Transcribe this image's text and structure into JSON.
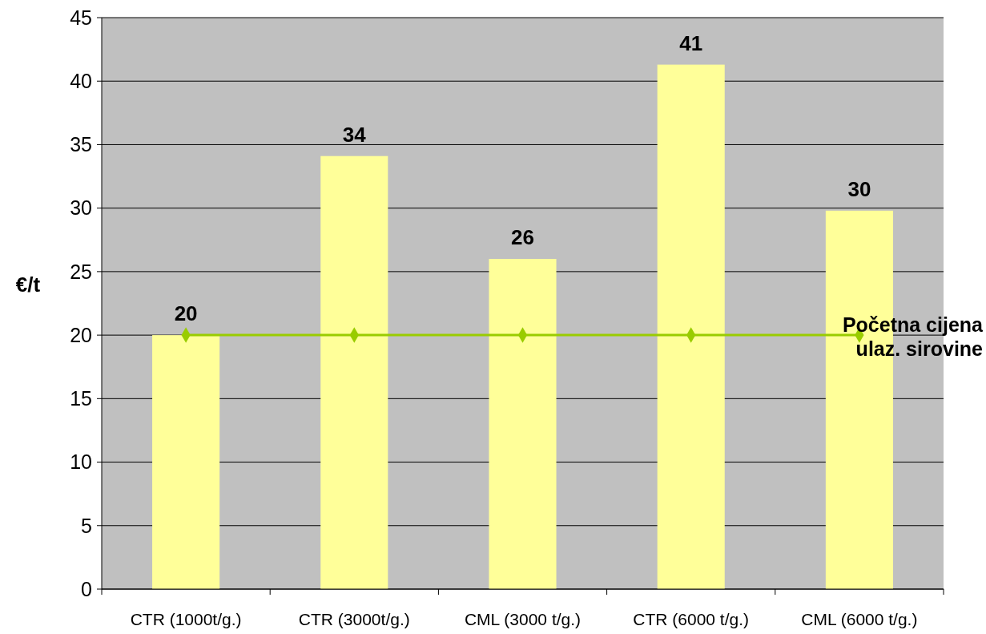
{
  "chart_data": {
    "type": "bar",
    "ylabel": "€/t",
    "categories": [
      "CTR (1000t/g.)",
      "CTR (3000t/g.)",
      "CML (3000 t/g.)",
      "CTR (6000 t/g.)",
      "CML (6000 t/g.)"
    ],
    "series": [
      {
        "color": "#ffff99",
        "values": [
          20,
          34.1,
          26,
          41.3,
          29.8
        ],
        "value_labels": [
          "20",
          "34",
          "26",
          "41",
          "30"
        ]
      },
      {
        "type": "line",
        "name": "Početna cijena ulaz. sirovine",
        "color": "#99cc00",
        "values": [
          20,
          20,
          20,
          20,
          20
        ],
        "marker": "diamond"
      }
    ],
    "ylim": [
      0,
      45
    ],
    "yticks": [
      0,
      5,
      10,
      15,
      20,
      25,
      30,
      35,
      40,
      45
    ],
    "grid": "y"
  }
}
